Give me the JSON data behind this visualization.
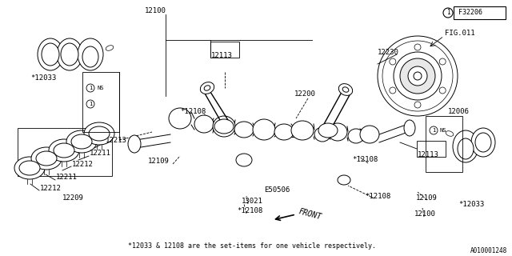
{
  "bg_color": "#ffffff",
  "fig_label": "F32206",
  "part_number_label": "A010001248",
  "footnote": "*12033 & 12108 are the set-items for one vehicle respectively.",
  "lw": 0.7,
  "thin": 0.5,
  "fs": 6.5
}
